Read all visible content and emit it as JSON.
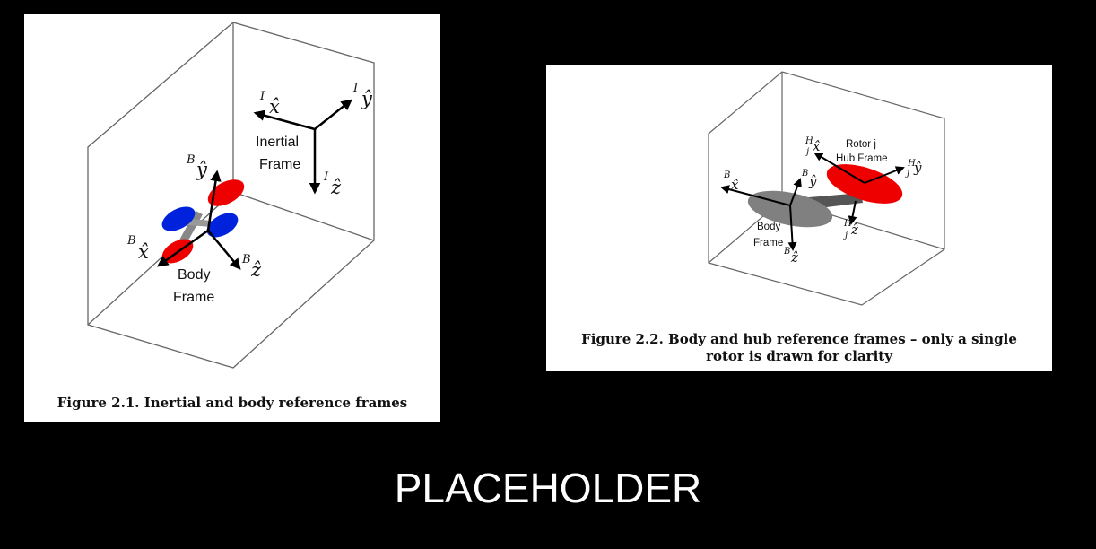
{
  "slide": {
    "title": "PLACEHOLDER"
  },
  "figure1": {
    "caption": "Figure 2.1. Inertial and body reference frames",
    "inertial_label": [
      "Inertial",
      "Frame"
    ],
    "body_label": [
      "Body",
      "Frame"
    ],
    "axes": {
      "inertial_x": {
        "sup": "I",
        "sym": "x̂"
      },
      "inertial_y": {
        "sup": "I",
        "sym": "ŷ"
      },
      "inertial_z": {
        "sup": "I",
        "sym": "ẑ"
      },
      "body_x": {
        "sup": "B",
        "sym": "x̂"
      },
      "body_y": {
        "sup": "B",
        "sym": "ŷ"
      },
      "body_z": {
        "sup": "B",
        "sym": "ẑ"
      }
    },
    "colors": {
      "front_rotor": "#ee0000",
      "rear_rotor": "#0022dd",
      "arm": "#888888"
    }
  },
  "figure2": {
    "caption_lines": [
      "Figure 2.2. Body and hub reference frames – only a single",
      "rotor is drawn for clarity"
    ],
    "rotor_label": [
      "Rotor j",
      "Hub Frame"
    ],
    "body_label": [
      "Body",
      "Frame"
    ],
    "axes": {
      "hub_x": {
        "sup": "H",
        "sub": "j",
        "sym": "x̂"
      },
      "hub_y": {
        "sup": "H",
        "sub": "j",
        "sym": "ŷ"
      },
      "hub_z": {
        "sup": "H",
        "sub": "j",
        "sym": "ẑ"
      },
      "body_x": {
        "sup": "B",
        "sym": "x̂"
      },
      "body_y": {
        "sup": "B",
        "sym": "ŷ"
      },
      "body_z": {
        "sup": "B",
        "sym": "ẑ"
      }
    },
    "colors": {
      "rotor": "#ee0000",
      "body": "#808080",
      "arm": "#555555"
    }
  }
}
